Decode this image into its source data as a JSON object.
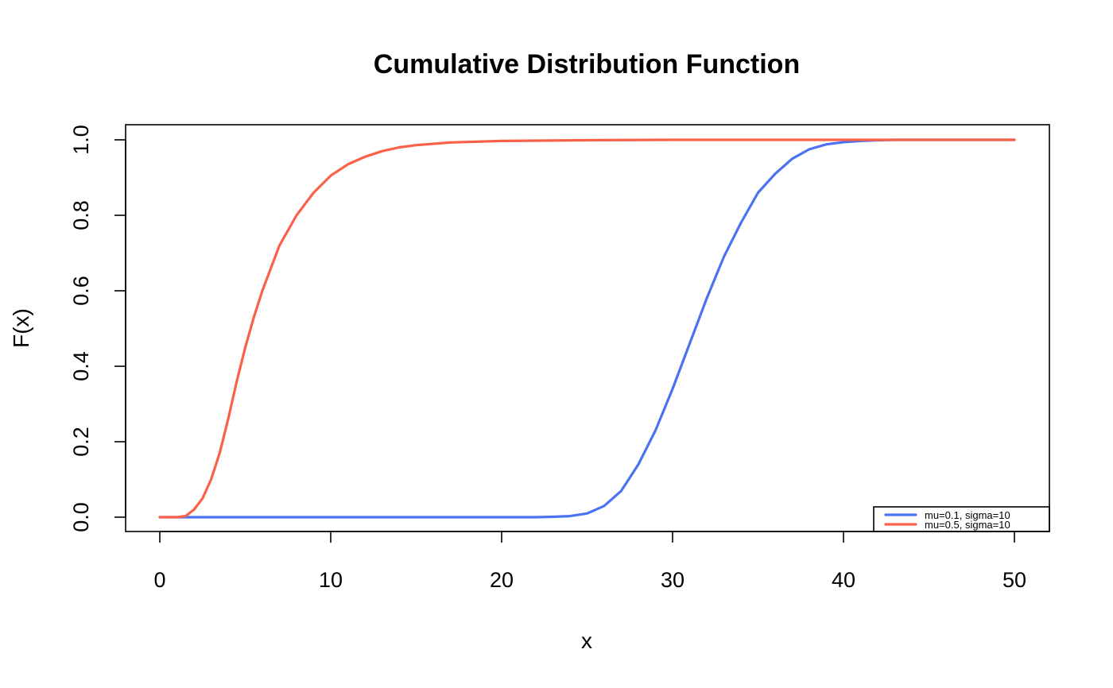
{
  "chart_data": {
    "type": "line",
    "title": "Cumulative Distribution Function",
    "xlabel": "x",
    "ylabel": "F(x)",
    "xlim": [
      -2,
      52
    ],
    "ylim": [
      -0.04,
      1.04
    ],
    "x_ticks": [
      0,
      10,
      20,
      30,
      40,
      50
    ],
    "x_tick_labels": [
      "0",
      "10",
      "20",
      "30",
      "40",
      "50"
    ],
    "y_ticks": [
      0,
      0.2,
      0.4,
      0.6,
      0.8,
      1
    ],
    "y_tick_labels": [
      "0.0",
      "0.2",
      "0.4",
      "0.6",
      "0.8",
      "1.0"
    ],
    "grid": false,
    "legend_position": "bottom-right",
    "series": [
      {
        "name": "mu=0.1, sigma=10",
        "color": "#4B72F0",
        "x": [
          0,
          22,
          23,
          24,
          25,
          26,
          27,
          28,
          29,
          30,
          31,
          32,
          33,
          34,
          35,
          36,
          37,
          38,
          39,
          40,
          41,
          42,
          43,
          44,
          46,
          50
        ],
        "y": [
          0,
          0,
          0.001,
          0.003,
          0.01,
          0.03,
          0.07,
          0.14,
          0.23,
          0.34,
          0.46,
          0.58,
          0.69,
          0.78,
          0.86,
          0.91,
          0.95,
          0.975,
          0.988,
          0.994,
          0.997,
          0.999,
          1,
          1,
          1,
          1
        ]
      },
      {
        "name": "mu=0.5, sigma=10",
        "color": "#FA6148",
        "x": [
          0,
          1,
          1.5,
          2,
          2.5,
          3,
          3.5,
          4,
          4.5,
          5,
          5.5,
          6,
          7,
          8,
          9,
          10,
          11,
          12,
          13,
          14,
          15,
          17,
          20,
          25,
          30,
          50
        ],
        "y": [
          0,
          0,
          0.003,
          0.02,
          0.05,
          0.1,
          0.17,
          0.26,
          0.36,
          0.45,
          0.53,
          0.6,
          0.72,
          0.8,
          0.86,
          0.905,
          0.935,
          0.955,
          0.97,
          0.98,
          0.986,
          0.993,
          0.997,
          0.999,
          1,
          1
        ]
      }
    ]
  }
}
